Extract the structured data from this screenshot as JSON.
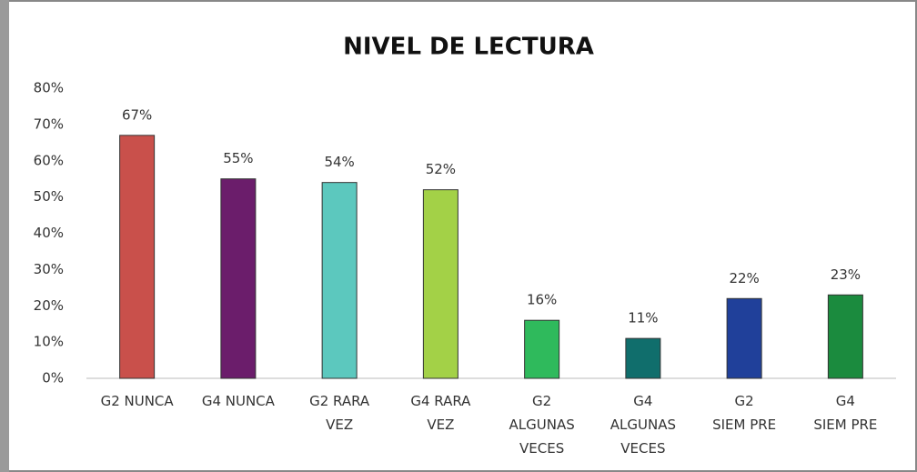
{
  "chart_data": {
    "type": "bar",
    "title": "NIVEL DE LECTURA",
    "categories": [
      "G2 NUNCA",
      "G4 NUNCA",
      "G2 RARA\nVEZ",
      "G4 RARA\nVEZ",
      "G2\nALGUNAS\nVECES",
      "G4\nALGUNAS\nVECES",
      "G2\nSIEM PRE",
      "G4\nSIEM PRE"
    ],
    "values": [
      67,
      55,
      54,
      52,
      16,
      11,
      22,
      23
    ],
    "value_labels": [
      "67%",
      "55%",
      "54%",
      "52%",
      "16%",
      "11%",
      "22%",
      "23%"
    ],
    "colors": [
      "#c9504b",
      "#6b1d6b",
      "#5cc8be",
      "#a3d147",
      "#2fba5c",
      "#106e6c",
      "#20409a",
      "#1b8b3e"
    ],
    "ylim": [
      0,
      80
    ],
    "yticks": [
      {
        "value": 0,
        "label": "0%"
      },
      {
        "value": 10,
        "label": "10%"
      },
      {
        "value": 20,
        "label": "20%"
      },
      {
        "value": 30,
        "label": "30%"
      },
      {
        "value": 40,
        "label": "40%"
      },
      {
        "value": 50,
        "label": "50%"
      },
      {
        "value": 60,
        "label": "60%"
      },
      {
        "value": 70,
        "label": "70%"
      },
      {
        "value": 80,
        "label": "80%"
      }
    ],
    "grid": false
  }
}
